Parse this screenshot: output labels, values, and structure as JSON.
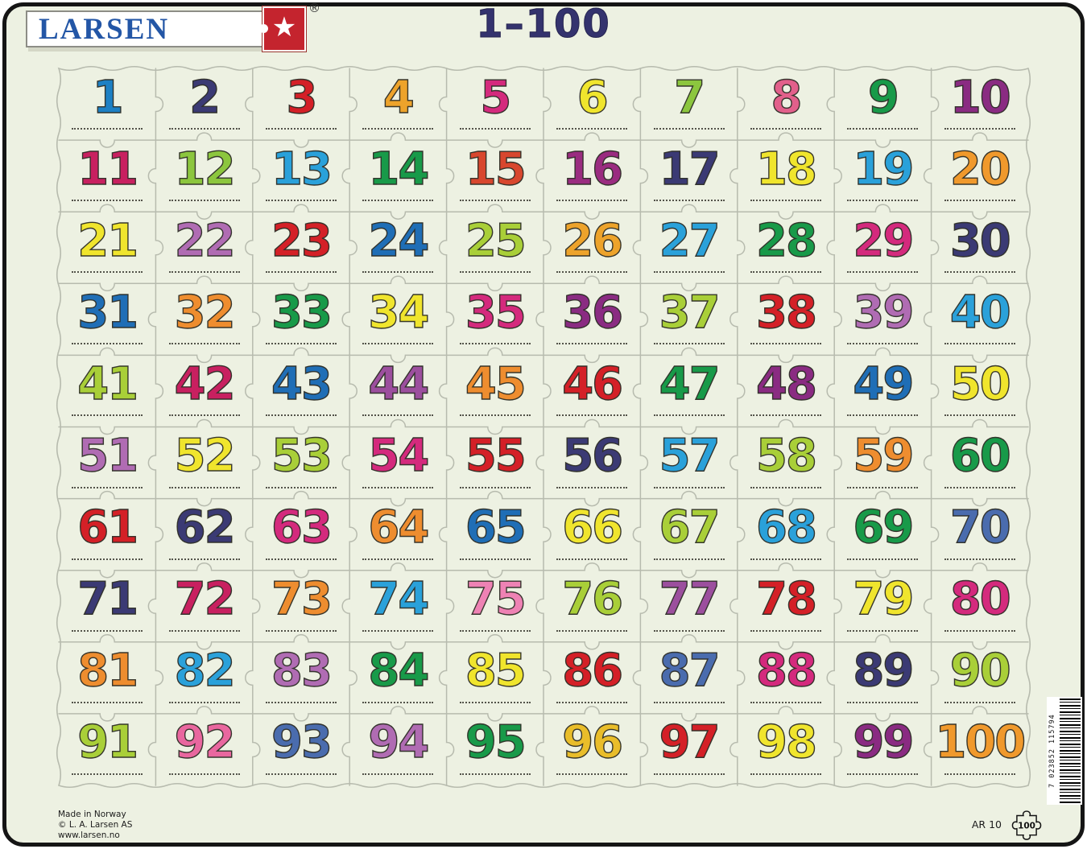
{
  "title": "1–100",
  "logo": {
    "brand": "LARSEN",
    "registered": "®",
    "star": "★"
  },
  "barcode": {
    "digits": "7 023852 115794"
  },
  "footer": {
    "made_in": "Made in Norway",
    "copyright": "© L. A. Larsen AS",
    "website": "www.larsen.no",
    "model": "AR 10",
    "piece_count": "100"
  },
  "grid": {
    "rows": 10,
    "cols": 10,
    "cells": [
      {
        "n": "1",
        "c": "#1d80c4"
      },
      {
        "n": "2",
        "c": "#3b3a74"
      },
      {
        "n": "3",
        "c": "#d42027"
      },
      {
        "n": "4",
        "c": "#eda32b"
      },
      {
        "n": "5",
        "c": "#d42a7d"
      },
      {
        "n": "6",
        "c": "#f0e52d"
      },
      {
        "n": "7",
        "c": "#8cc63e"
      },
      {
        "n": "8",
        "c": "#e2608b"
      },
      {
        "n": "9",
        "c": "#189a49"
      },
      {
        "n": "10",
        "c": "#8a2b82"
      },
      {
        "n": "11",
        "c": "#c82060"
      },
      {
        "n": "12",
        "c": "#8cc63e"
      },
      {
        "n": "13",
        "c": "#2aa1da"
      },
      {
        "n": "14",
        "c": "#189a49"
      },
      {
        "n": "15",
        "c": "#d8472e"
      },
      {
        "n": "16",
        "c": "#9a2c80"
      },
      {
        "n": "17",
        "c": "#3b3a74"
      },
      {
        "n": "18",
        "c": "#f0e52d"
      },
      {
        "n": "19",
        "c": "#2aa1da"
      },
      {
        "n": "20",
        "c": "#f0992c"
      },
      {
        "n": "21",
        "c": "#f0e52d"
      },
      {
        "n": "22",
        "c": "#b06cb3"
      },
      {
        "n": "23",
        "c": "#d42027"
      },
      {
        "n": "24",
        "c": "#1f6eb6"
      },
      {
        "n": "25",
        "c": "#a9cf38"
      },
      {
        "n": "26",
        "c": "#eda32b"
      },
      {
        "n": "27",
        "c": "#2aa1da"
      },
      {
        "n": "28",
        "c": "#189a49"
      },
      {
        "n": "29",
        "c": "#d42a7d"
      },
      {
        "n": "30",
        "c": "#3b3a74"
      },
      {
        "n": "31",
        "c": "#1f6eb6"
      },
      {
        "n": "32",
        "c": "#ee8d2f"
      },
      {
        "n": "33",
        "c": "#189a49"
      },
      {
        "n": "34",
        "c": "#f0e52d"
      },
      {
        "n": "35",
        "c": "#d42a7d"
      },
      {
        "n": "36",
        "c": "#8a2b82"
      },
      {
        "n": "37",
        "c": "#a9cf38"
      },
      {
        "n": "38",
        "c": "#d42027"
      },
      {
        "n": "39",
        "c": "#b06cb3"
      },
      {
        "n": "40",
        "c": "#2aa1da"
      },
      {
        "n": "41",
        "c": "#a9cf38"
      },
      {
        "n": "42",
        "c": "#c82060"
      },
      {
        "n": "43",
        "c": "#1f6eb6"
      },
      {
        "n": "44",
        "c": "#9c4f9e"
      },
      {
        "n": "45",
        "c": "#ee8d2f"
      },
      {
        "n": "46",
        "c": "#d42027"
      },
      {
        "n": "47",
        "c": "#189a49"
      },
      {
        "n": "48",
        "c": "#8a2b82"
      },
      {
        "n": "49",
        "c": "#1f6eb6"
      },
      {
        "n": "50",
        "c": "#f0e52d"
      },
      {
        "n": "51",
        "c": "#b06cb3"
      },
      {
        "n": "52",
        "c": "#f0e52d"
      },
      {
        "n": "53",
        "c": "#a9cf38"
      },
      {
        "n": "54",
        "c": "#d42a7d"
      },
      {
        "n": "55",
        "c": "#d42027"
      },
      {
        "n": "56",
        "c": "#3b3a74"
      },
      {
        "n": "57",
        "c": "#2aa1da"
      },
      {
        "n": "58",
        "c": "#a9cf38"
      },
      {
        "n": "59",
        "c": "#ee8d2f"
      },
      {
        "n": "60",
        "c": "#189a49"
      },
      {
        "n": "61",
        "c": "#d42027"
      },
      {
        "n": "62",
        "c": "#3b3a74"
      },
      {
        "n": "63",
        "c": "#d42a7d"
      },
      {
        "n": "64",
        "c": "#ee8d2f"
      },
      {
        "n": "65",
        "c": "#1f6eb6"
      },
      {
        "n": "66",
        "c": "#f0e52d"
      },
      {
        "n": "67",
        "c": "#a9cf38"
      },
      {
        "n": "68",
        "c": "#2aa1da"
      },
      {
        "n": "69",
        "c": "#189a49"
      },
      {
        "n": "70",
        "c": "#4a6cae"
      },
      {
        "n": "71",
        "c": "#3b3a74"
      },
      {
        "n": "72",
        "c": "#c82060"
      },
      {
        "n": "73",
        "c": "#ee8d2f"
      },
      {
        "n": "74",
        "c": "#2aa1da"
      },
      {
        "n": "75",
        "c": "#ee82b4"
      },
      {
        "n": "76",
        "c": "#a9cf38"
      },
      {
        "n": "77",
        "c": "#9c4f9e"
      },
      {
        "n": "78",
        "c": "#d42027"
      },
      {
        "n": "79",
        "c": "#f0e52d"
      },
      {
        "n": "80",
        "c": "#d42a7d"
      },
      {
        "n": "81",
        "c": "#ee8d2f"
      },
      {
        "n": "82",
        "c": "#2aa1da"
      },
      {
        "n": "83",
        "c": "#b06cb3"
      },
      {
        "n": "84",
        "c": "#189a49"
      },
      {
        "n": "85",
        "c": "#f0e52d"
      },
      {
        "n": "86",
        "c": "#d42027"
      },
      {
        "n": "87",
        "c": "#4a6cae"
      },
      {
        "n": "88",
        "c": "#d42a7d"
      },
      {
        "n": "89",
        "c": "#3b3a74"
      },
      {
        "n": "90",
        "c": "#a9cf38"
      },
      {
        "n": "91",
        "c": "#a9cf38"
      },
      {
        "n": "92",
        "c": "#e9679f"
      },
      {
        "n": "93",
        "c": "#4a6cae"
      },
      {
        "n": "94",
        "c": "#b06cb3"
      },
      {
        "n": "95",
        "c": "#189a49"
      },
      {
        "n": "96",
        "c": "#e9bd2a"
      },
      {
        "n": "97",
        "c": "#d42027"
      },
      {
        "n": "98",
        "c": "#f0e52d"
      },
      {
        "n": "99",
        "c": "#8a2b82"
      },
      {
        "n": "100",
        "c": "#f0992c"
      }
    ]
  }
}
